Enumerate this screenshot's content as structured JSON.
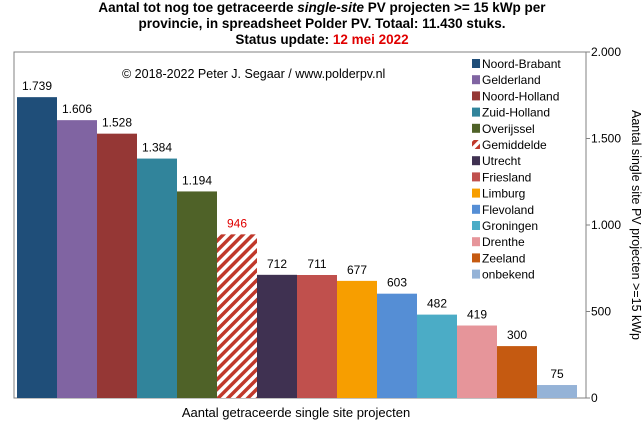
{
  "title": {
    "line1_a": "Aantal tot nog toe getraceerde ",
    "line1_italic": "single-site",
    "line1_b": " PV projecten >= 15 kWp per",
    "line2": "provincie, in spreadsheet Polder PV. Totaal: 11.430 stuks.",
    "line3_label": "Status update: ",
    "line3_date": "12 mei 2022"
  },
  "copyright": "© 2018-2022  Peter J. Segaar / www.polderpv.nl",
  "colors": {
    "background": "#ffffff",
    "date_red": "#e00000",
    "gemiddelde_label": "#e00000"
  },
  "chart_data": {
    "type": "bar",
    "xlabel": "Aantal getraceerde single site projecten",
    "ylabel": "Aantal single site PV projecten >=15 kWp",
    "y_axis_side": "right",
    "ylim": [
      0,
      2000
    ],
    "yticks": [
      0,
      500,
      1000,
      1500,
      2000
    ],
    "ytick_labels": [
      "0",
      "500",
      "1.000",
      "1.500",
      "2.000"
    ],
    "grid": false,
    "legend_position": "top-right",
    "categories": [
      "Noord-Brabant",
      "Gelderland",
      "Noord-Holland",
      "Zuid-Holland",
      "Overijssel",
      "Gemiddelde",
      "Utrecht",
      "Friesland",
      "Limburg",
      "Flevoland",
      "Groningen",
      "Drenthe",
      "Zeeland",
      "onbekend"
    ],
    "values": [
      1739,
      1606,
      1528,
      1384,
      1194,
      946,
      712,
      711,
      677,
      603,
      482,
      419,
      300,
      75
    ],
    "value_labels": [
      "1.739",
      "1.606",
      "1.528",
      "1.384",
      "1.194",
      "946",
      "712",
      "711",
      "677",
      "603",
      "482",
      "419",
      "300",
      "75"
    ],
    "bar_colors": [
      "#1f4e79",
      "#8064a2",
      "#953735",
      "#31849b",
      "#4f6228",
      "#c0392b",
      "#3f3151",
      "#c0504d",
      "#f79e00",
      "#558ed5",
      "#4bacc6",
      "#e6959a",
      "#c55a11",
      "#95b3d7"
    ],
    "hatched": [
      "Gemiddelde"
    ]
  }
}
